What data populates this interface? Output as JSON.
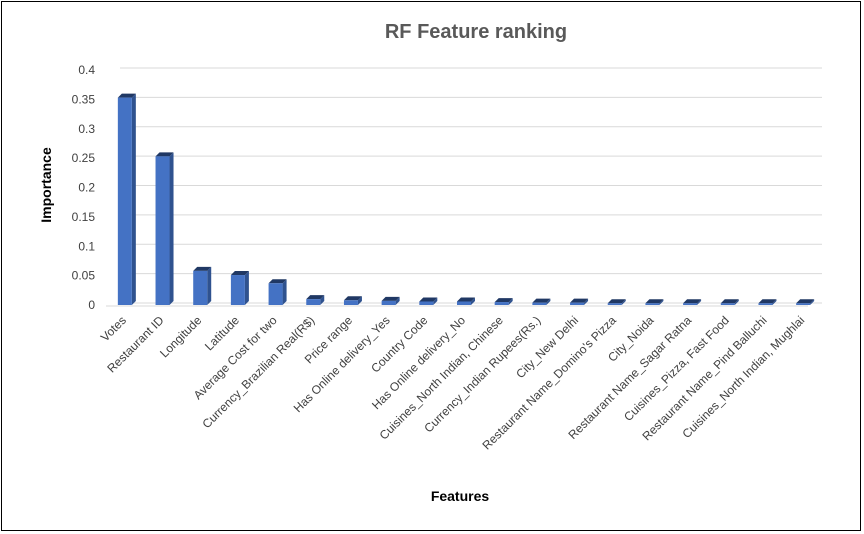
{
  "chart_data": {
    "type": "bar",
    "title": "RF Feature ranking",
    "xlabel": "Features",
    "ylabel": "Importance",
    "ylim": [
      0,
      0.4
    ],
    "yticks": [
      "0",
      "0.05",
      "0.1",
      "0.15",
      "0.2",
      "0.25",
      "0.3",
      "0.35",
      "0.4"
    ],
    "grid": true,
    "bar_color": "#4472c4",
    "categories": [
      "Votes",
      "Restaurant ID",
      "Longitude",
      "Latitude",
      "Average Cost for two",
      "Currency_Brazilian Real(R$)",
      "Price range",
      "Has Online delivery_Yes",
      "Country Code",
      "Has Online delivery_No",
      "Cuisines_North Indian, Chinese",
      "Currency_Indian Rupees(Rs.)",
      "City_New Delhi",
      "Restaurant Name_Domino's Pizza",
      "City_Noida",
      "Restaurant Name_Sagar Ratna",
      "Cuisines_Pizza, Fast Food",
      "Restaurant Name_Pind Balluchi",
      "Cuisines_North Indian, Mughlai"
    ],
    "values": [
      0.353,
      0.253,
      0.058,
      0.051,
      0.037,
      0.01,
      0.008,
      0.007,
      0.006,
      0.006,
      0.005,
      0.004,
      0.004,
      0.003,
      0.003,
      0.003,
      0.003,
      0.003,
      0.003
    ]
  }
}
